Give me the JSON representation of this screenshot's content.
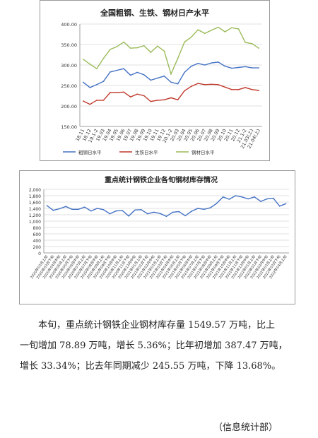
{
  "chart_data": [
    {
      "type": "line",
      "title": "全国粗钢、生铁、钢材日产水平",
      "xlabel": "",
      "ylabel": "",
      "ylim": [
        150,
        400
      ],
      "yticks": [
        "150.00",
        "200.00",
        "250.00",
        "300.00",
        "350.00",
        "400.00"
      ],
      "categories": [
        "18.11",
        "18.12",
        "19.1-2",
        "19.03",
        "19.04",
        "19.05",
        "19.06",
        "19.07",
        "19.08",
        "19.09",
        "19.10",
        "19.11",
        "19.12",
        "20.1-2",
        "20.03",
        "20.04",
        "20.05",
        "20.06",
        "20.07",
        "20.08",
        "20.09",
        "20.10",
        "20.11",
        "20.12",
        "21.1-2",
        "21.03(上)",
        "21.04(上)"
      ],
      "grid": true,
      "legend": "bottom",
      "series": [
        {
          "name": "粗钢日水平",
          "color": "#4472c4",
          "values": [
            258,
            245,
            252,
            260,
            283,
            287,
            291,
            275,
            282,
            276,
            263,
            268,
            273,
            258,
            254,
            282,
            297,
            304,
            300,
            305,
            307,
            297,
            292,
            294,
            296,
            293,
            293
          ]
        },
        {
          "name": "生铁日水平",
          "color": "#c0392b",
          "values": [
            212,
            204,
            214,
            214,
            233,
            233,
            234,
            222,
            229,
            225,
            211,
            214,
            215,
            220,
            215,
            237,
            248,
            255,
            252,
            253,
            252,
            246,
            240,
            240,
            245,
            240,
            238
          ]
        },
        {
          "name": "钢材日水平",
          "color": "#9bbb59",
          "values": [
            314,
            302,
            291,
            316,
            338,
            345,
            356,
            341,
            342,
            347,
            331,
            346,
            334,
            278,
            316,
            356,
            368,
            386,
            377,
            385,
            392,
            381,
            391,
            388,
            355,
            352,
            341
          ]
        }
      ]
    },
    {
      "type": "line",
      "title": "重点统计钢铁企业各旬钢材库存情况",
      "xlabel": "",
      "ylabel": "",
      "ylim": [
        0,
        2000
      ],
      "yticks": [
        "0",
        "200",
        "400",
        "600",
        "800",
        "1,000",
        "1,200",
        "1,400",
        "1,600",
        "1,800",
        "2,000"
      ],
      "categories": [
        "2020年03月上旬",
        "2020年03月下旬",
        "2020年04月中旬",
        "2020年05月上旬",
        "2020年05月下旬",
        "2020年06月中旬",
        "2020年07月上旬",
        "2020年07月下旬",
        "2020年08月中旬",
        "2020年09月上旬",
        "2020年09月下旬",
        "2020年10月中旬",
        "2020年11月上旬",
        "2020年11月下旬",
        "2020年12月中旬",
        "2021年01月上旬",
        "2021年01月下旬",
        "2021年02月中旬",
        "2021年03月上旬",
        "2021年03月下旬",
        "2021年04月中旬",
        "2021年05月上旬",
        "2021年05月下旬",
        "2021年06月中旬",
        "2021年07月上旬",
        "2021年07月下旬",
        "2021年08月中旬",
        "2021年09月上旬",
        "2021年09月下旬",
        "2021年10月中旬",
        "2021年11月上旬",
        "2021年11月下旬",
        "2021年12月中旬",
        "2022年01月上旬",
        "2022年01月下旬",
        "2022年02月中旬",
        "2022年03月上旬",
        "2022年03月下旬",
        "2022年04月上旬"
      ],
      "grid": true,
      "legend": "none",
      "series": [
        {
          "name": "",
          "color": "#4472c4",
          "values": [
            1490,
            1340,
            1390,
            1460,
            1370,
            1370,
            1440,
            1320,
            1400,
            1360,
            1230,
            1320,
            1330,
            1160,
            1350,
            1360,
            1230,
            1280,
            1240,
            1150,
            1280,
            1300,
            1170,
            1310,
            1400,
            1370,
            1420,
            1560,
            1760,
            1690,
            1800,
            1760,
            1700,
            1760,
            1620,
            1700,
            1720,
            1471,
            1550
          ]
        }
      ]
    }
  ],
  "text": {
    "paragraph_lines": [
      "本旬，重点统计钢铁企业钢材库存量 1549.57 万吨，比上",
      "一旬增加 78.89 万吨，增长 5.36%；比年初增加 387.47 万吨，",
      "增长 33.34%；比去年同期减少 245.55 万吨，下降 13.68%。"
    ],
    "source": "（信息统计部）"
  }
}
